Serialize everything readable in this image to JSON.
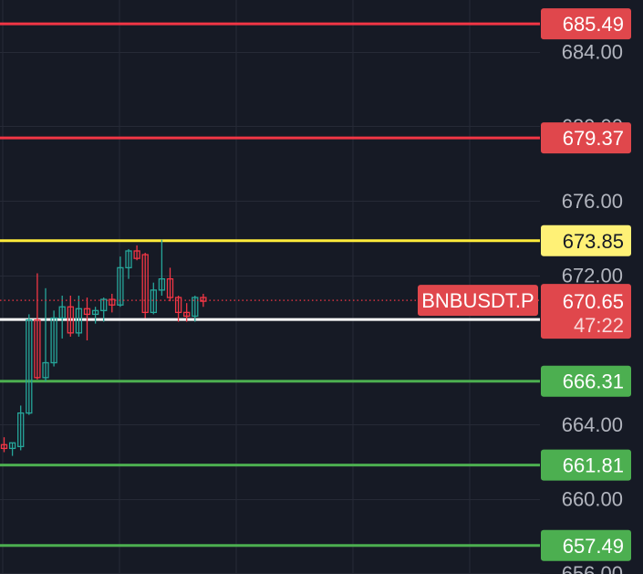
{
  "chart_data": {
    "type": "candlestick",
    "symbol": "BNBUSDT.P",
    "current_price": 670.65,
    "countdown": "47:22",
    "y_range": [
      655.96,
      686.77
    ],
    "y_ticks": [
      {
        "value": 684.0,
        "label": "684.00"
      },
      {
        "value": 680.0,
        "label": "680.00"
      },
      {
        "value": 676.0,
        "label": "676.00"
      },
      {
        "value": 672.0,
        "label": "672.00"
      },
      {
        "value": 664.0,
        "label": "664.00"
      },
      {
        "value": 660.0,
        "label": "660.00"
      },
      {
        "value": 656.0,
        "label": "656.00"
      }
    ],
    "horizontal_lines": [
      {
        "value": 685.49,
        "label": "685.49",
        "color": "#f23645",
        "label_bg": "#e0474c",
        "label_color": "#ffffff"
      },
      {
        "value": 679.37,
        "label": "679.37",
        "color": "#f23645",
        "label_bg": "#e0474c",
        "label_color": "#ffffff"
      },
      {
        "value": 673.85,
        "label": "673.85",
        "color": "#ffeb3b",
        "label_bg": "#fff176",
        "label_color": "#161a25"
      },
      {
        "value": 669.62,
        "label": "669.62",
        "color": "#ffffff",
        "label_bg": "#ffffff",
        "label_color": "#161a25"
      },
      {
        "value": 666.31,
        "label": "666.31",
        "color": "#4caf50",
        "label_bg": "#4caf50",
        "label_color": "#ffffff"
      },
      {
        "value": 661.81,
        "label": "661.81",
        "color": "#4caf50",
        "label_bg": "#4caf50",
        "label_color": "#ffffff"
      },
      {
        "value": 657.49,
        "label": "657.49",
        "color": "#4caf50",
        "label_bg": "#4caf50",
        "label_color": "#ffffff"
      }
    ],
    "candles": [
      {
        "o": 662.9,
        "h": 663.3,
        "l": 662.5,
        "c": 662.7
      },
      {
        "o": 662.7,
        "h": 663.0,
        "l": 662.3,
        "c": 663.0
      },
      {
        "o": 662.8,
        "h": 665.0,
        "l": 662.6,
        "c": 664.6
      },
      {
        "o": 664.6,
        "h": 669.9,
        "l": 664.5,
        "c": 669.6
      },
      {
        "o": 669.6,
        "h": 672.1,
        "l": 666.4,
        "c": 666.5
      },
      {
        "o": 666.5,
        "h": 671.3,
        "l": 666.3,
        "c": 667.3
      },
      {
        "o": 667.3,
        "h": 670.1,
        "l": 667.1,
        "c": 669.7
      },
      {
        "o": 669.7,
        "h": 670.9,
        "l": 668.6,
        "c": 670.3
      },
      {
        "o": 670.3,
        "h": 670.9,
        "l": 668.7,
        "c": 668.9
      },
      {
        "o": 668.9,
        "h": 670.9,
        "l": 668.7,
        "c": 670.2
      },
      {
        "o": 670.2,
        "h": 670.8,
        "l": 668.5,
        "c": 669.9
      },
      {
        "o": 669.9,
        "h": 670.3,
        "l": 669.4,
        "c": 670.1
      },
      {
        "o": 670.1,
        "h": 670.8,
        "l": 669.5,
        "c": 670.7
      },
      {
        "o": 670.7,
        "h": 671.0,
        "l": 670.0,
        "c": 670.4
      },
      {
        "o": 670.4,
        "h": 673.0,
        "l": 670.3,
        "c": 672.4
      },
      {
        "o": 672.4,
        "h": 673.4,
        "l": 671.8,
        "c": 673.3
      },
      {
        "o": 673.3,
        "h": 673.6,
        "l": 672.8,
        "c": 672.9
      },
      {
        "o": 673.1,
        "h": 673.2,
        "l": 669.7,
        "c": 670.0
      },
      {
        "o": 670.0,
        "h": 671.6,
        "l": 669.9,
        "c": 671.2
      },
      {
        "o": 671.2,
        "h": 673.9,
        "l": 670.9,
        "c": 671.8
      },
      {
        "o": 671.8,
        "h": 672.4,
        "l": 670.6,
        "c": 670.8
      },
      {
        "o": 670.8,
        "h": 670.9,
        "l": 669.5,
        "c": 670.0
      },
      {
        "o": 670.0,
        "h": 670.5,
        "l": 669.5,
        "c": 669.8
      },
      {
        "o": 669.8,
        "h": 670.9,
        "l": 669.5,
        "c": 670.8
      },
      {
        "o": 670.8,
        "h": 671.0,
        "l": 670.3,
        "c": 670.6
      }
    ],
    "colors": {
      "background": "#161a25",
      "grid": "#262a36",
      "up": "#26a69a",
      "down": "#f23645",
      "axis_text": "#b2b5be",
      "price_label_bg": "#e0474c"
    }
  }
}
